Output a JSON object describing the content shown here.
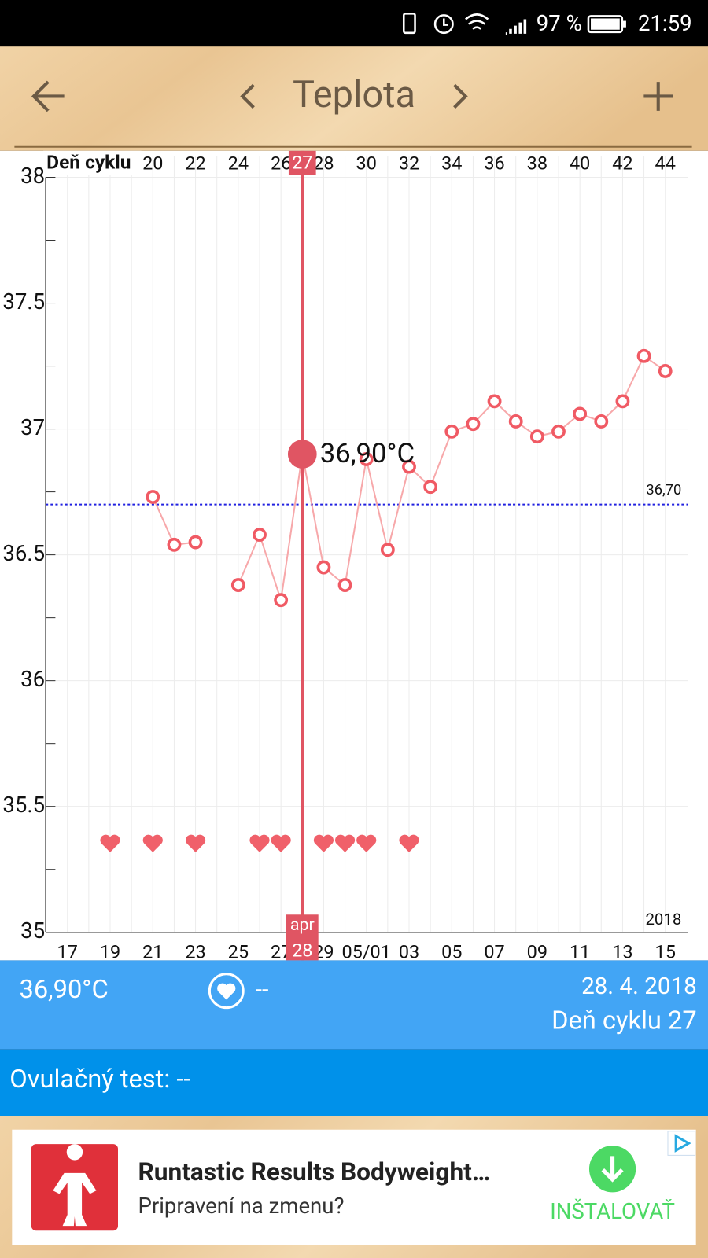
{
  "status_bar": {
    "battery": "97 %",
    "time": "21:59"
  },
  "header": {
    "title": "Teplota"
  },
  "chart_data": {
    "type": "line",
    "x_title": "Deň cyklu",
    "year": "2018",
    "categories": [
      "17",
      null,
      "19",
      null,
      "21",
      null,
      "23",
      null,
      "25",
      null,
      "27",
      "28",
      "29",
      null,
      "05/01",
      null,
      "03",
      null,
      "05",
      null,
      "07",
      null,
      "09",
      null,
      "11",
      null,
      "13",
      null,
      "15"
    ],
    "cycle_days": [
      null,
      null,
      null,
      null,
      "20",
      null,
      "22",
      null,
      "24",
      null,
      "26",
      "27",
      "28",
      null,
      "30",
      null,
      "32",
      null,
      "34",
      null,
      "36",
      null,
      "38",
      null,
      "40",
      null,
      "42",
      null,
      "44"
    ],
    "series": [
      {
        "color": "#f05a64",
        "values": [
          null,
          null,
          null,
          null,
          36.73,
          36.54,
          36.55,
          null,
          36.38,
          36.58,
          36.32,
          36.9,
          36.45,
          36.38,
          36.88,
          36.52,
          36.85,
          36.77,
          36.99,
          37.02,
          37.11,
          37.03,
          36.97,
          36.99,
          37.06,
          37.03,
          37.11,
          37.29,
          37.23
        ]
      }
    ],
    "ylim": [
      35,
      38
    ],
    "yticks": [
      35,
      35.5,
      36,
      36.5,
      37,
      37.5,
      38
    ],
    "minor_yticks": [
      35.25,
      35.75,
      36.25,
      36.75,
      37.25,
      37.75
    ],
    "grid": true,
    "reference": {
      "value": 36.7,
      "label": "36,70",
      "color": "#2020e0"
    },
    "hearts": [
      false,
      false,
      true,
      false,
      true,
      false,
      true,
      false,
      false,
      true,
      true,
      false,
      true,
      true,
      true,
      false,
      true,
      false,
      false,
      false,
      false,
      false,
      false,
      false,
      false,
      false,
      false,
      false,
      false
    ],
    "hearts_y": 35.35,
    "heart_color": "#f0606a",
    "selected": {
      "category": "28",
      "month": "apr",
      "label": "36,90°C",
      "color": "#e05563"
    }
  },
  "summary": {
    "temperature": "36,90°C",
    "intercourse": "--",
    "date": "28. 4. 2018",
    "cycle_day": "Deň cyklu 27"
  },
  "ovulation": {
    "label": "Ovulačný test: --"
  },
  "ad": {
    "title": "Runtastic Results Bodyweight…",
    "subtitle": "Pripravení na zmenu?",
    "button": "INŠTALOVAŤ"
  }
}
